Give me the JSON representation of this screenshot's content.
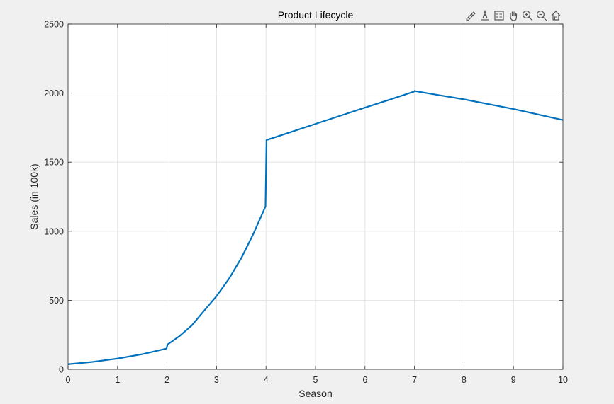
{
  "toolbar": {
    "icons": [
      "brush-icon",
      "data-tips-icon",
      "legend-icon",
      "pan-icon",
      "zoom-in-icon",
      "zoom-out-icon",
      "home-icon"
    ]
  },
  "chart_data": {
    "type": "line",
    "title": "Product Lifecycle",
    "xlabel": "Season",
    "ylabel": "Sales (in 100k)",
    "xlim": [
      0,
      10
    ],
    "ylim": [
      0,
      2500
    ],
    "xticks": [
      0,
      1,
      2,
      3,
      4,
      5,
      6,
      7,
      8,
      9,
      10
    ],
    "yticks": [
      0,
      500,
      1000,
      1500,
      2000,
      2500
    ],
    "grid": true,
    "line_color": "#0072bd",
    "series": [
      {
        "x": [
          0,
          0.5,
          1,
          1.5,
          1.99,
          2.0,
          2.01,
          2.25,
          2.5,
          2.75,
          3.0,
          3.25,
          3.5,
          3.75,
          3.99,
          4.0,
          4.01,
          4.5,
          5,
          5.5,
          6,
          6.5,
          6.99,
          7.0,
          7.01,
          7.5,
          8,
          8.5,
          9,
          9.5,
          10
        ],
        "y": [
          37,
          54,
          78,
          110,
          150,
          165,
          180,
          240,
          318,
          425,
          530,
          655,
          805,
          985,
          1180,
          1420,
          1660,
          1718,
          1777,
          1836,
          1895,
          1953,
          2011,
          2016,
          2015,
          1985,
          1955,
          1920,
          1885,
          1845,
          1805
        ]
      }
    ]
  }
}
